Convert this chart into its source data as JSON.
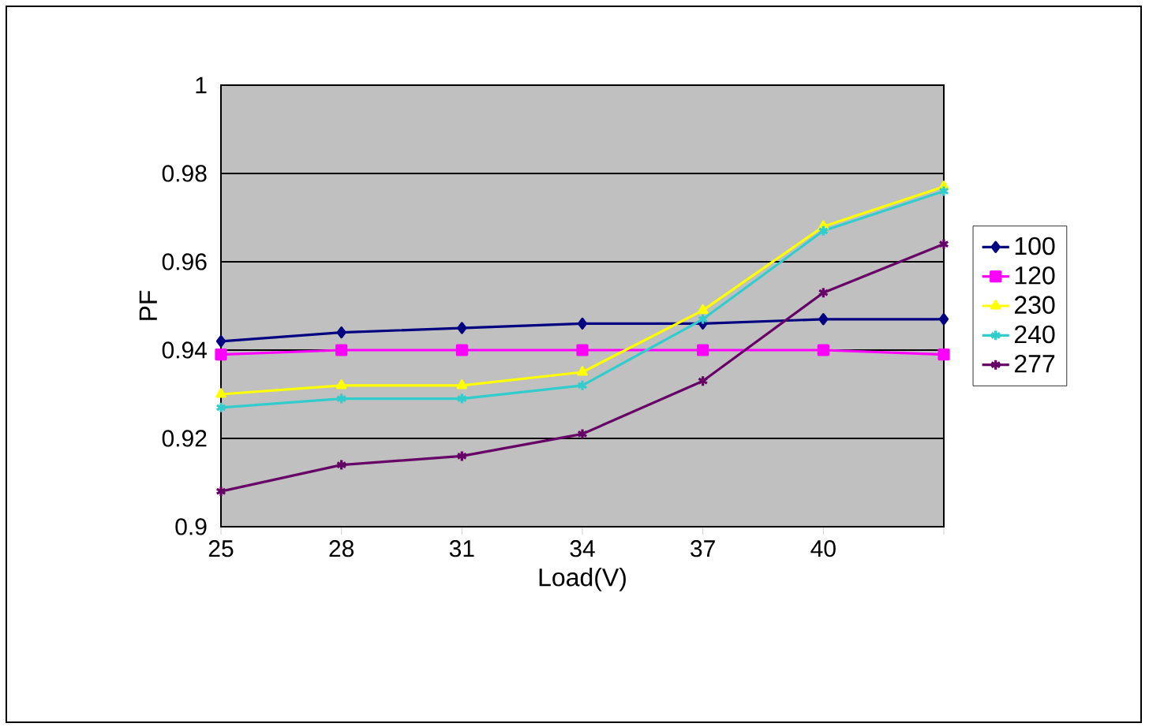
{
  "chart_data": {
    "type": "line",
    "xlabel": "Load(V)",
    "ylabel": "PF",
    "categories": [
      "25",
      "28",
      "31",
      "34",
      "37",
      "40",
      null
    ],
    "ylim": [
      0.9,
      1
    ],
    "yticks": [
      0.9,
      0.92,
      0.94,
      0.96,
      0.98,
      1
    ],
    "grid": "y",
    "legend": "right",
    "series": [
      {
        "name": "100",
        "color": "#000080",
        "marker": "diamond",
        "values": [
          0.942,
          0.944,
          0.945,
          0.946,
          0.946,
          0.947,
          0.947
        ]
      },
      {
        "name": "120",
        "color": "#ff00ff",
        "marker": "square",
        "values": [
          0.939,
          0.94,
          0.94,
          0.94,
          0.94,
          0.94,
          0.939
        ]
      },
      {
        "name": "230",
        "color": "#ffff00",
        "marker": "triangle",
        "values": [
          0.93,
          0.932,
          0.932,
          0.935,
          0.949,
          0.968,
          0.977
        ]
      },
      {
        "name": "240",
        "color": "#33cccc",
        "marker": "cross",
        "values": [
          0.927,
          0.929,
          0.929,
          0.932,
          0.947,
          0.967,
          0.976
        ]
      },
      {
        "name": "277",
        "color": "#660066",
        "marker": "cross",
        "values": [
          0.908,
          0.914,
          0.916,
          0.921,
          0.933,
          0.953,
          0.964
        ]
      }
    ]
  }
}
